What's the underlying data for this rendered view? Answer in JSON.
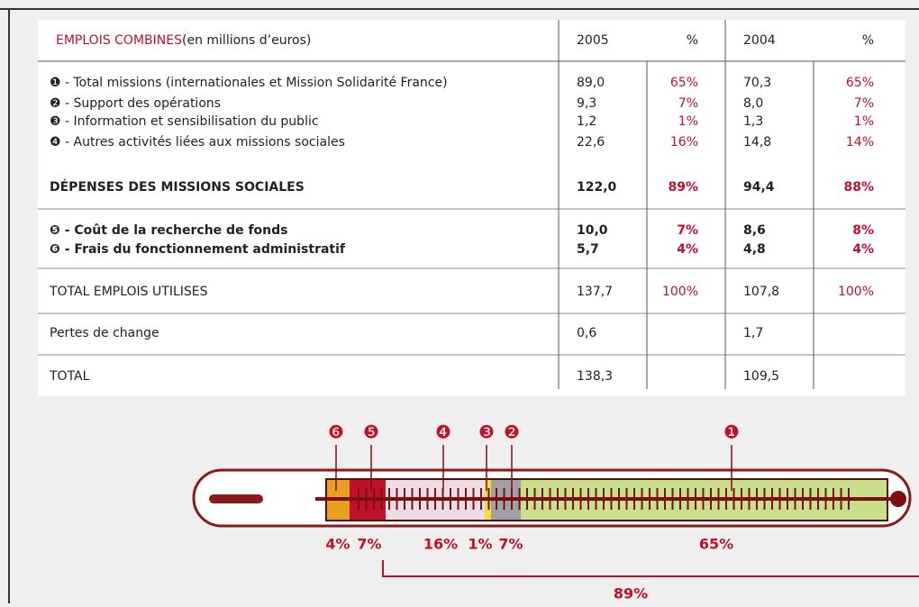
{
  "table": {
    "header": {
      "title": "EMPLOIS COMBINES",
      "unit": "(en millions d’euros)",
      "columns": [
        "2005",
        "%",
        "2004",
        "%"
      ]
    },
    "rows": [
      [
        "❶ - Total missions (internationales et Mission Solidarité France)",
        "89,0",
        "65%",
        "70,3",
        "65%"
      ],
      [
        "❷ - Support des opérations",
        "9,3",
        "7%",
        "8,0",
        "7%"
      ],
      [
        "❸ - Information et sensibilisation du public",
        "1,2",
        "1%",
        "1,3",
        "1%"
      ],
      [
        "❹ - Autres activités liées aux missions sociales",
        "22,6",
        "16%",
        "14,8",
        "14%"
      ],
      [
        "DÉPENSES DES MISSIONS SOCIALES",
        "122,0",
        "89%",
        "94,4",
        "88%"
      ],
      [
        "❺ - Coût de la recherche de fonds",
        "10,0",
        "7%",
        "8,6",
        "8%"
      ],
      [
        "❻ - Frais du fonctionnement administratif",
        "5,7",
        "4%",
        "4,8",
        "4%"
      ],
      [
        "TOTAL EMPLOIS UTILISES",
        "137,7",
        "100%",
        "107,8",
        "100%"
      ],
      [
        "Pertes de change",
        "0,6",
        null,
        "1,7",
        null
      ],
      [
        "TOTAL",
        "138,3",
        null,
        "109,5",
        null
      ]
    ]
  },
  "gauge": {
    "markers": [
      "❻",
      "❺",
      "❹",
      "❸",
      "❷",
      "❶"
    ],
    "labels": [
      "4%",
      "7%",
      "16%",
      "1%",
      "7%",
      "65%"
    ],
    "total": "89%"
  }
}
